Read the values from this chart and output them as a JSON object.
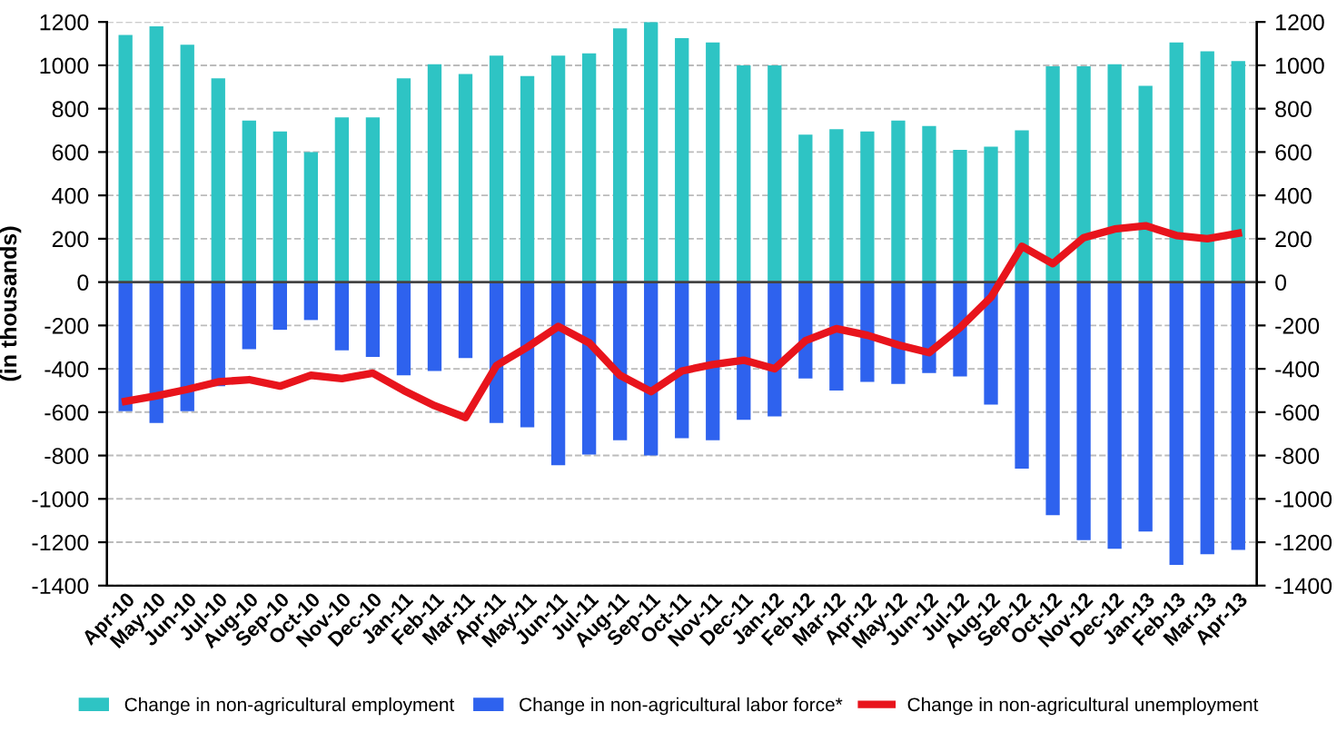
{
  "chart_data": {
    "type": "bar",
    "ylabel": "(in thousands)",
    "categories": [
      "Apr-10",
      "May-10",
      "Jun-10",
      "Jul-10",
      "Aug-10",
      "Sep-10",
      "Oct-10",
      "Nov-10",
      "Dec-10",
      "Jan-11",
      "Feb-11",
      "Mar-11",
      "Apr-11",
      "May-11",
      "Jun-11",
      "Jul-11",
      "Aug-11",
      "Sep-11",
      "Oct-11",
      "Nov-11",
      "Dec-11",
      "Jan-12",
      "Feb-12",
      "Mar-12",
      "Apr-12",
      "May-12",
      "Jun-12",
      "Jul-12",
      "Aug-12",
      "Sep-12",
      "Oct-12",
      "Nov-12",
      "Dec-12",
      "Jan-13",
      "Feb-13",
      "Mar-13",
      "Apr-13"
    ],
    "series": [
      {
        "name": "Change in non-agricultural employment",
        "color": "#2ec4c4",
        "values": [
          1140,
          1180,
          1095,
          940,
          745,
          695,
          600,
          760,
          760,
          940,
          1005,
          960,
          1045,
          950,
          1045,
          1055,
          1170,
          1200,
          1125,
          1105,
          1000,
          1000,
          680,
          705,
          695,
          745,
          720,
          610,
          625,
          700,
          995,
          995,
          1005,
          905,
          1105,
          1065,
          1020
        ]
      },
      {
        "name": "Change in non-agricultural labor force*",
        "color": "#2e62ee",
        "values": [
          -595,
          -650,
          -595,
          -480,
          -310,
          -220,
          -175,
          -315,
          -345,
          -430,
          -410,
          -350,
          -650,
          -670,
          -845,
          -795,
          -730,
          -800,
          -720,
          -730,
          -635,
          -620,
          -445,
          -500,
          -460,
          -470,
          -420,
          -435,
          -565,
          -860,
          -1075,
          -1190,
          -1230,
          -1150,
          -1305,
          -1255,
          -1235
        ]
      },
      {
        "name": "Change in non-agricultural unemployment",
        "type": "line",
        "color": "#e8141c",
        "values": [
          -550,
          -525,
          -495,
          -460,
          -450,
          -480,
          -430,
          -445,
          -420,
          -500,
          -570,
          -625,
          -385,
          -300,
          -205,
          -280,
          -430,
          -505,
          -410,
          -380,
          -360,
          -400,
          -270,
          -215,
          -245,
          -290,
          -325,
          -210,
          -70,
          165,
          85,
          205,
          245,
          260,
          215,
          200,
          225
        ]
      }
    ],
    "ylim": [
      -1400,
      1200
    ],
    "yticks": [
      -1400,
      -1200,
      -1000,
      -800,
      -600,
      -400,
      -200,
      0,
      200,
      400,
      600,
      800,
      1000,
      1200
    ],
    "y2lim": [
      -1400,
      1200
    ],
    "y2ticks": [
      -1400,
      -1200,
      -1000,
      -800,
      -600,
      -400,
      -200,
      0,
      200,
      400,
      600,
      800,
      1000,
      1200
    ],
    "stacked": true,
    "grid": "y",
    "legend": "bottom",
    "line_style": "solid",
    "marker": "none"
  }
}
